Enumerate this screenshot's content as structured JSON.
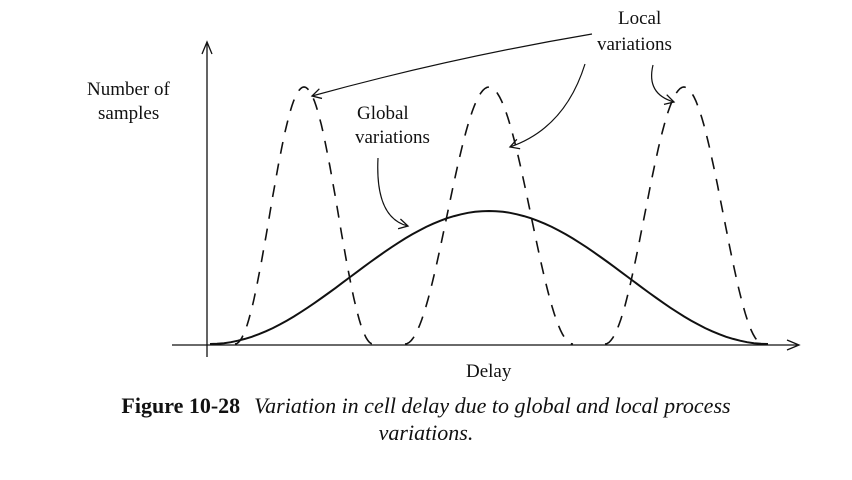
{
  "diagram": {
    "labels": {
      "y_axis_line1": "Number of",
      "y_axis_line2": "samples",
      "x_axis": "Delay",
      "global_line1": "Global",
      "global_line2": "variations",
      "local_line1": "Local",
      "local_line2": "variations"
    },
    "curves": {
      "global": {
        "style": "solid",
        "meaning": "Global variations"
      },
      "local": {
        "style": "dashed",
        "count": 3,
        "meaning": "Local variations"
      }
    },
    "colors": {
      "ink": "#111111",
      "background": "#ffffff"
    }
  },
  "caption": {
    "number": "Figure 10-28",
    "text_line1": "Variation in cell delay due to global and local process",
    "text_line2": "variations."
  }
}
